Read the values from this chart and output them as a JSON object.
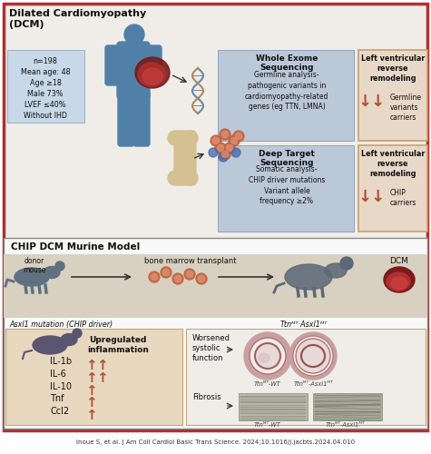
{
  "bg_color": "#ffffff",
  "border_color": "#b03030",
  "top_bg": "#f0ede8",
  "stats_box_bg": "#c8d8e8",
  "seq_box_bg": "#bbc8d8",
  "result_box_bg": "#e8d8c8",
  "result_box_border": "#c8a070",
  "murine_bg": "#f8f8f8",
  "murine_top_bg": "#d8d0c0",
  "inflam_box_bg": "#e8d8c0",
  "hist_box_bg": "#f0ece8",
  "arrow_color": "#b05030",
  "human_color": "#5080a8",
  "mouse_color": "#607080",
  "title_top": "Dilated Cardiomyopathy\n(DCM)",
  "stats_lines": [
    "n=198",
    "Mean age: 48",
    "Age ≥18",
    "Male 73%",
    "LVEF ≤40%",
    "Without IHD"
  ],
  "seq1_title": "Whole Exome\nSequencing",
  "seq1_body": "Germline analysis-\npathogenic variants in\ncardiomyopathy-related\ngenes (eg TTN, LMNA)",
  "result1_line1": "Left ventricular",
  "result1_line2": "reverse",
  "result1_line3": "remodeling",
  "result1_sub": "Germline\nvariants\ncarriers",
  "seq2_title": "Deep Target\nSequencing",
  "seq2_body": "Somatic analysis-\nCHIP driver mutations\nVariant allele\nfrequency ≥2%",
  "result2_line1": "Left ventricular",
  "result2_line2": "reverse",
  "result2_line3": "remodeling",
  "result2_sub": "CHIP\ncarriers",
  "murine_title": "CHIP DCM Murine Model",
  "donor_label": "donor\nmouse",
  "bmt_label": "bone marrow transplant",
  "dcm_label": "DCM",
  "asxl1_label": "Asxl1 mutation (CHIP driver)",
  "ttn_label": "Ttnᴹᵀ·Asxl1ᴹᵀ",
  "inflam_title": "Upregulated\ninflammation",
  "inflam_items": [
    "IL-1b",
    "IL-6",
    "IL-10",
    "Tnf",
    "Ccl2"
  ],
  "inflam_arrows": [
    2,
    2,
    1,
    1,
    1
  ],
  "worsened_label": "Worsened\nsystolic\nfunction",
  "fibrosis_label": "Fibrosis",
  "lbl_wt1": "Ttnᴹᵀ-WT",
  "lbl_asxl1": "Ttnᴹᵀ-Asxl1ᴹᵀ",
  "lbl_wt2": "Ttnᴹᵀ-WT",
  "lbl_asxl2": "Ttnᴹᵀ-Asxl1ᴹᵀ",
  "citation": "Inoue S, et al. J Am Coll Cardiol Basic Trans Science. 2024;10.1016/j.jacbts.2024.04.010"
}
